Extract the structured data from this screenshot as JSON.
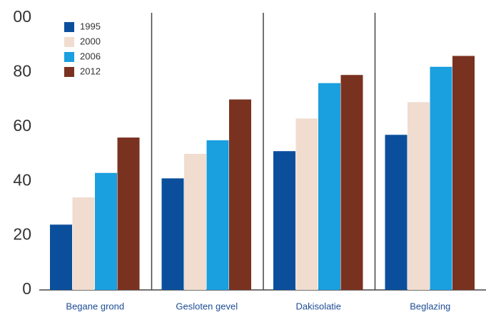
{
  "chart_data": {
    "type": "bar",
    "categories": [
      "Begane grond",
      "Gesloten gevel",
      "Dakisolatie",
      "Beglazing"
    ],
    "series": [
      {
        "name": "1995",
        "color": "#0b4f9c",
        "values": [
          24,
          41,
          51,
          57
        ]
      },
      {
        "name": "2000",
        "color": "#f0ddd0",
        "values": [
          34,
          50,
          63,
          69
        ]
      },
      {
        "name": "2006",
        "color": "#1a9fdf",
        "values": [
          43,
          55,
          76,
          82
        ]
      },
      {
        "name": "2012",
        "color": "#7a3220",
        "values": [
          56,
          70,
          79,
          86
        ]
      }
    ],
    "ylim": [
      0,
      100
    ],
    "yticks": [
      0,
      20,
      40,
      60,
      80,
      {
        "value": 100,
        "label": "00"
      }
    ],
    "legend": "upper left"
  }
}
